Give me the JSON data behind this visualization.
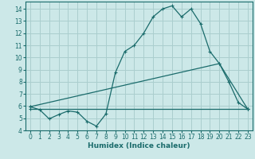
{
  "xlabel": "Humidex (Indice chaleur)",
  "ylabel": "",
  "background_color": "#cce8e8",
  "grid_color": "#aacece",
  "line_color": "#1a6b6b",
  "xlim": [
    -0.5,
    23.5
  ],
  "ylim": [
    4,
    14.6
  ],
  "yticks": [
    4,
    5,
    6,
    7,
    8,
    9,
    10,
    11,
    12,
    13,
    14
  ],
  "xticks": [
    0,
    1,
    2,
    3,
    4,
    5,
    6,
    7,
    8,
    9,
    10,
    11,
    12,
    13,
    14,
    15,
    16,
    17,
    18,
    19,
    20,
    21,
    22,
    23
  ],
  "curve1_x": [
    0,
    1,
    2,
    3,
    4,
    5,
    6,
    7,
    8,
    9,
    10,
    11,
    12,
    13,
    14,
    15,
    16,
    17,
    18,
    19,
    20,
    21,
    22,
    23
  ],
  "curve1_y": [
    5.95,
    5.7,
    4.95,
    5.3,
    5.6,
    5.5,
    4.75,
    4.35,
    5.35,
    8.75,
    10.5,
    11.0,
    12.0,
    13.35,
    14.0,
    14.25,
    13.35,
    14.0,
    12.8,
    10.5,
    9.5,
    8.0,
    6.3,
    5.75
  ],
  "curve2_x": [
    0,
    20,
    23
  ],
  "curve2_y": [
    5.95,
    9.5,
    5.75
  ],
  "curve3_x": [
    0,
    23
  ],
  "curve3_y": [
    5.75,
    5.75
  ],
  "tick_fontsize": 5.5,
  "xlabel_fontsize": 6.5
}
